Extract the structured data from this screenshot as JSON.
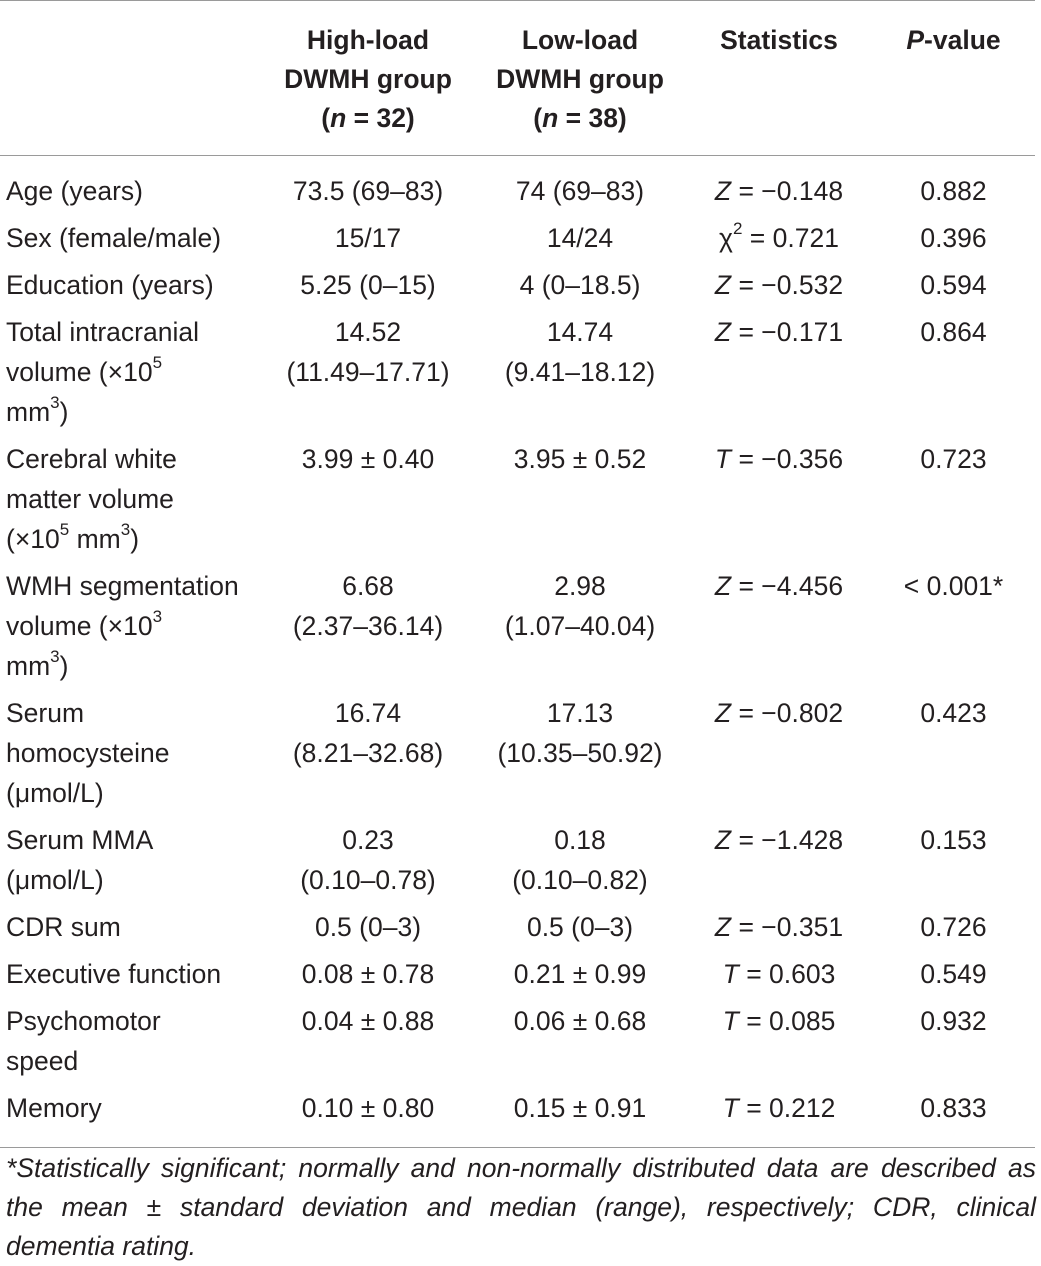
{
  "header": {
    "high_line1": "High-load",
    "high_line2": "DWMH group",
    "high_n_prefix": "(",
    "high_n_var": "n",
    "high_n_rest": " = 32)",
    "low_line1": "Low-load",
    "low_line2": "DWMH group",
    "low_n_prefix": "(",
    "low_n_var": "n",
    "low_n_rest": " = 38)",
    "statistics": "Statistics",
    "pvalue_var": "P",
    "pvalue_rest": "-value"
  },
  "rows": [
    {
      "label": "Age (years)",
      "high": "73.5 (69–83)",
      "low": "74 (69–83)",
      "stat_var": "Z",
      "stat_rest": " = −0.148",
      "p": "0.882"
    },
    {
      "label": "Sex (female/male)",
      "high": "15/17",
      "low": "14/24",
      "stat_var": "χ",
      "stat_sup": "2",
      "stat_rest": " = 0.721",
      "p": "0.396"
    },
    {
      "label": "Education (years)",
      "high": "5.25 (0–15)",
      "low": "4 (0–18.5)",
      "stat_var": "Z",
      "stat_rest": " = −0.532",
      "p": "0.594"
    },
    {
      "label_a": "Total intracranial",
      "label_b": "volume (×10",
      "label_b_sup": "5",
      "label_c": "mm",
      "label_c_sup": "3",
      "label_c_end": ")",
      "high_a": "14.52",
      "high_b": "(11.49–17.71)",
      "low_a": "14.74",
      "low_b": "(9.41–18.12)",
      "stat_var": "Z",
      "stat_rest": " = −0.171",
      "p": "0.864"
    },
    {
      "label_a": "Cerebral white",
      "label_b": "matter volume",
      "label_c": "(×10",
      "label_c_sup": "5",
      "label_c_mid": " mm",
      "label_c_sup2": "3",
      "label_c_end": ")",
      "high": "3.99 ± 0.40",
      "low": "3.95 ± 0.52",
      "stat_var": "T",
      "stat_rest": " = −0.356",
      "p": "0.723"
    },
    {
      "label_a": "WMH segmentation",
      "label_b": "volume (×10",
      "label_b_sup": "3",
      "label_c": "mm",
      "label_c_sup": "3",
      "label_c_end": ")",
      "high_a": "6.68",
      "high_b": "(2.37–36.14)",
      "low_a": "2.98",
      "low_b": "(1.07–40.04)",
      "stat_var": "Z",
      "stat_rest": " = −4.456",
      "p": "< 0.001*"
    },
    {
      "label_a": "Serum",
      "label_b": "homocysteine",
      "label_c": "(μmol/L)",
      "high_a": "16.74",
      "high_b": "(8.21–32.68)",
      "low_a": "17.13",
      "low_b": "(10.35–50.92)",
      "stat_var": "Z",
      "stat_rest": " = −0.802",
      "p": "0.423"
    },
    {
      "label_a": "Serum MMA",
      "label_b": "(μmol/L)",
      "high_a": "0.23",
      "high_b": "(0.10–0.78)",
      "low_a": "0.18",
      "low_b": "(0.10–0.82)",
      "stat_var": "Z",
      "stat_rest": " = −1.428",
      "p": "0.153"
    },
    {
      "label": "CDR sum",
      "high": "0.5 (0–3)",
      "low": "0.5 (0–3)",
      "stat_var": "Z",
      "stat_rest": " = −0.351",
      "p": "0.726"
    },
    {
      "label": "Executive function",
      "high": "0.08 ± 0.78",
      "low": "0.21 ± 0.99",
      "stat_var": "T",
      "stat_rest": " = 0.603",
      "p": "0.549"
    },
    {
      "label_a": "Psychomotor",
      "label_b": "speed",
      "high": "0.04 ± 0.88",
      "low": "0.06 ± 0.68",
      "stat_var": "T",
      "stat_rest": " = 0.085",
      "p": "0.932"
    },
    {
      "label": "Memory",
      "high": "0.10 ± 0.80",
      "low": "0.15 ± 0.91",
      "stat_var": "T",
      "stat_rest": " = 0.212",
      "p": "0.833"
    }
  ],
  "footnote": "*Statistically significant; normally and non-normally distributed data are described as the mean ± standard deviation and median (range), respectively; CDR, clinical dementia rating."
}
